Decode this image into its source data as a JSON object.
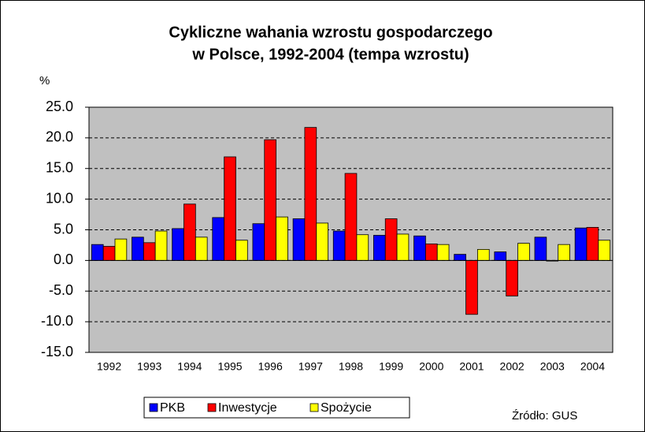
{
  "chart_data": {
    "type": "bar",
    "title": [
      "Cykliczne wahania wzrostu gospodarczego",
      "w Polsce, 1992-2004 (tempa wzrostu)"
    ],
    "y_label": "%",
    "source": "Źródło: GUS",
    "categories": [
      "1992",
      "1993",
      "1994",
      "1995",
      "1996",
      "1997",
      "1998",
      "1999",
      "2000",
      "2001",
      "2002",
      "2003",
      "2004"
    ],
    "series": [
      {
        "name": "PKB",
        "color": "#0000ff",
        "values": [
          2.6,
          3.8,
          5.2,
          7.0,
          6.0,
          6.8,
          4.8,
          4.1,
          4.0,
          1.0,
          1.4,
          3.8,
          5.3
        ]
      },
      {
        "name": "Inwestycje",
        "color": "#ff0000",
        "values": [
          2.3,
          2.9,
          9.2,
          16.9,
          19.7,
          21.7,
          14.2,
          6.8,
          2.7,
          -8.8,
          -5.8,
          -0.1,
          5.4
        ]
      },
      {
        "name": "Spożycie",
        "color": "#ffff00",
        "values": [
          3.5,
          4.8,
          3.8,
          3.3,
          7.1,
          6.1,
          4.2,
          4.3,
          2.6,
          1.8,
          2.8,
          2.6,
          3.3
        ]
      }
    ],
    "ylim": [
      -15,
      25
    ],
    "yticks": [
      {
        "value": -15,
        "label": "-15.0"
      },
      {
        "value": -10,
        "label": "-10.0"
      },
      {
        "value": -5,
        "label": "-5.0"
      },
      {
        "value": 0,
        "label": "0.0"
      },
      {
        "value": 5,
        "label": "5.0"
      },
      {
        "value": 10,
        "label": "10.0"
      },
      {
        "value": 15,
        "label": "15.0"
      },
      {
        "value": 20,
        "label": "20.0"
      },
      {
        "value": 25,
        "label": "25.0"
      }
    ],
    "grid": true,
    "legend": "bottom"
  }
}
